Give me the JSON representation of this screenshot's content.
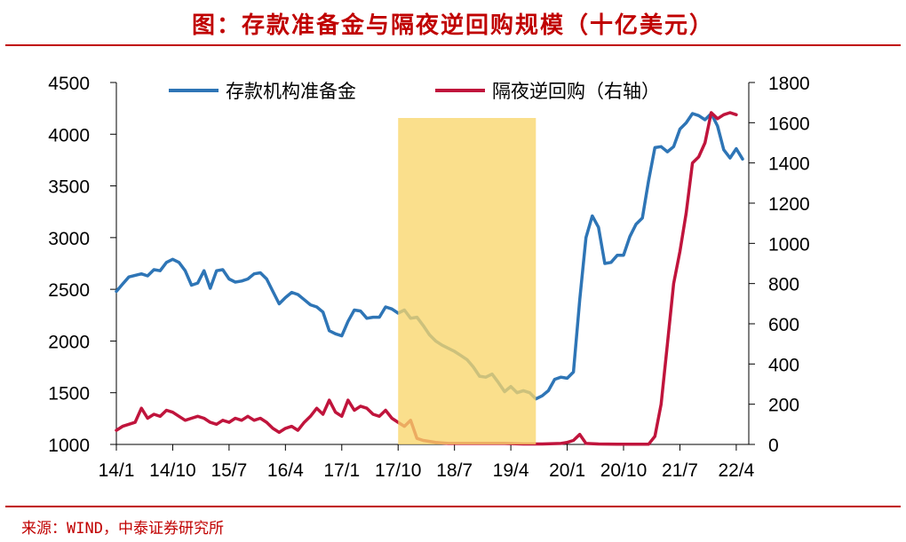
{
  "header": {
    "title": "图：存款准备金与隔夜逆回购规模（十亿美元）"
  },
  "footer": {
    "source": "来源：WIND，中泰证券研究所"
  },
  "chart_data": {
    "type": "line",
    "title": "图：存款准备金与隔夜逆回购规模（十亿美元）",
    "x_tick_labels": [
      "14/1",
      "14/10",
      "15/7",
      "16/4",
      "17/1",
      "17/10",
      "18/7",
      "19/4",
      "20/1",
      "20/10",
      "21/7",
      "22/4"
    ],
    "x_range": [
      "2014-01",
      "2022-06"
    ],
    "y_left": {
      "range": [
        1000,
        4500
      ],
      "ticks": [
        1000,
        1500,
        2000,
        2500,
        3000,
        3500,
        4000,
        4500
      ]
    },
    "y_right": {
      "range": [
        0,
        1800
      ],
      "ticks": [
        0,
        200,
        400,
        600,
        800,
        1000,
        1200,
        1400,
        1600,
        1800
      ]
    },
    "legend_position": "top",
    "highlight_band": {
      "start": "2017-10",
      "end": "2019-08",
      "color": "#f9d66b"
    },
    "series": [
      {
        "name": "存款机构准备金",
        "axis": "left",
        "color": "#2e75b6",
        "points": [
          [
            "2014-01",
            2480
          ],
          [
            "2014-02",
            2550
          ],
          [
            "2014-03",
            2620
          ],
          [
            "2014-05",
            2650
          ],
          [
            "2014-06",
            2630
          ],
          [
            "2014-07",
            2690
          ],
          [
            "2014-08",
            2680
          ],
          [
            "2014-09",
            2760
          ],
          [
            "2014-10",
            2790
          ],
          [
            "2014-11",
            2760
          ],
          [
            "2014-12",
            2680
          ],
          [
            "2015-01",
            2540
          ],
          [
            "2015-02",
            2560
          ],
          [
            "2015-03",
            2680
          ],
          [
            "2015-04",
            2510
          ],
          [
            "2015-05",
            2680
          ],
          [
            "2015-06",
            2690
          ],
          [
            "2015-07",
            2600
          ],
          [
            "2015-08",
            2570
          ],
          [
            "2015-09",
            2580
          ],
          [
            "2015-10",
            2600
          ],
          [
            "2015-11",
            2650
          ],
          [
            "2015-12",
            2660
          ],
          [
            "2016-01",
            2600
          ],
          [
            "2016-02",
            2480
          ],
          [
            "2016-03",
            2360
          ],
          [
            "2016-04",
            2420
          ],
          [
            "2016-05",
            2470
          ],
          [
            "2016-06",
            2450
          ],
          [
            "2016-07",
            2400
          ],
          [
            "2016-08",
            2350
          ],
          [
            "2016-09",
            2330
          ],
          [
            "2016-10",
            2280
          ],
          [
            "2016-11",
            2100
          ],
          [
            "2016-12",
            2070
          ],
          [
            "2017-01",
            2050
          ],
          [
            "2017-02",
            2190
          ],
          [
            "2017-03",
            2300
          ],
          [
            "2017-04",
            2290
          ],
          [
            "2017-05",
            2220
          ],
          [
            "2017-06",
            2230
          ],
          [
            "2017-07",
            2230
          ],
          [
            "2017-08",
            2330
          ],
          [
            "2017-09",
            2310
          ],
          [
            "2017-10",
            2270
          ],
          [
            "2017-11",
            2300
          ],
          [
            "2017-12",
            2220
          ],
          [
            "2018-01",
            2230
          ],
          [
            "2018-02",
            2150
          ],
          [
            "2018-03",
            2060
          ],
          [
            "2018-04",
            2000
          ],
          [
            "2018-05",
            1960
          ],
          [
            "2018-06",
            1930
          ],
          [
            "2018-07",
            1900
          ],
          [
            "2018-08",
            1860
          ],
          [
            "2018-09",
            1820
          ],
          [
            "2018-10",
            1750
          ],
          [
            "2018-11",
            1660
          ],
          [
            "2018-12",
            1650
          ],
          [
            "2019-01",
            1680
          ],
          [
            "2019-02",
            1600
          ],
          [
            "2019-03",
            1510
          ],
          [
            "2019-04",
            1560
          ],
          [
            "2019-05",
            1500
          ],
          [
            "2019-06",
            1520
          ],
          [
            "2019-07",
            1500
          ],
          [
            "2019-08",
            1440
          ],
          [
            "2019-09",
            1470
          ],
          [
            "2019-10",
            1520
          ],
          [
            "2019-11",
            1630
          ],
          [
            "2019-12",
            1650
          ],
          [
            "2020-01",
            1640
          ],
          [
            "2020-02",
            1700
          ],
          [
            "2020-03",
            2400
          ],
          [
            "2020-04",
            3000
          ],
          [
            "2020-05",
            3210
          ],
          [
            "2020-06",
            3100
          ],
          [
            "2020-07",
            2750
          ],
          [
            "2020-08",
            2760
          ],
          [
            "2020-09",
            2830
          ],
          [
            "2020-10",
            2830
          ],
          [
            "2020-11",
            3010
          ],
          [
            "2020-12",
            3130
          ],
          [
            "2021-01",
            3190
          ],
          [
            "2021-02",
            3550
          ],
          [
            "2021-03",
            3870
          ],
          [
            "2021-04",
            3880
          ],
          [
            "2021-05",
            3830
          ],
          [
            "2021-06",
            3880
          ],
          [
            "2021-07",
            4050
          ],
          [
            "2021-08",
            4110
          ],
          [
            "2021-09",
            4200
          ],
          [
            "2021-10",
            4180
          ],
          [
            "2021-11",
            4140
          ],
          [
            "2021-12",
            4200
          ],
          [
            "2022-01",
            4080
          ],
          [
            "2022-02",
            3850
          ],
          [
            "2022-03",
            3770
          ],
          [
            "2022-04",
            3860
          ],
          [
            "2022-05",
            3760
          ]
        ]
      },
      {
        "name": "隔夜逆回购（右轴）",
        "axis": "right",
        "color": "#c0143c",
        "points": [
          [
            "2014-01",
            70
          ],
          [
            "2014-02",
            90
          ],
          [
            "2014-03",
            100
          ],
          [
            "2014-04",
            110
          ],
          [
            "2014-05",
            180
          ],
          [
            "2014-06",
            130
          ],
          [
            "2014-07",
            150
          ],
          [
            "2014-08",
            140
          ],
          [
            "2014-09",
            170
          ],
          [
            "2014-10",
            160
          ],
          [
            "2014-11",
            140
          ],
          [
            "2014-12",
            120
          ],
          [
            "2015-01",
            130
          ],
          [
            "2015-02",
            140
          ],
          [
            "2015-03",
            130
          ],
          [
            "2015-04",
            110
          ],
          [
            "2015-05",
            100
          ],
          [
            "2015-06",
            120
          ],
          [
            "2015-07",
            110
          ],
          [
            "2015-08",
            130
          ],
          [
            "2015-09",
            120
          ],
          [
            "2015-10",
            140
          ],
          [
            "2015-11",
            120
          ],
          [
            "2015-12",
            130
          ],
          [
            "2016-01",
            110
          ],
          [
            "2016-02",
            80
          ],
          [
            "2016-03",
            60
          ],
          [
            "2016-04",
            80
          ],
          [
            "2016-05",
            90
          ],
          [
            "2016-06",
            70
          ],
          [
            "2016-07",
            110
          ],
          [
            "2016-08",
            140
          ],
          [
            "2016-09",
            180
          ],
          [
            "2016-10",
            150
          ],
          [
            "2016-11",
            220
          ],
          [
            "2016-12",
            160
          ],
          [
            "2017-01",
            140
          ],
          [
            "2017-02",
            220
          ],
          [
            "2017-03",
            170
          ],
          [
            "2017-04",
            190
          ],
          [
            "2017-05",
            180
          ],
          [
            "2017-06",
            150
          ],
          [
            "2017-07",
            140
          ],
          [
            "2017-08",
            170
          ],
          [
            "2017-09",
            130
          ],
          [
            "2017-10",
            110
          ],
          [
            "2017-11",
            90
          ],
          [
            "2017-12",
            120
          ],
          [
            "2018-01",
            30
          ],
          [
            "2018-02",
            20
          ],
          [
            "2018-03",
            15
          ],
          [
            "2018-04",
            10
          ],
          [
            "2018-06",
            5
          ],
          [
            "2018-09",
            5
          ],
          [
            "2018-12",
            5
          ],
          [
            "2019-03",
            5
          ],
          [
            "2019-06",
            2
          ],
          [
            "2019-09",
            2
          ],
          [
            "2019-12",
            5
          ],
          [
            "2020-01",
            10
          ],
          [
            "2020-02",
            20
          ],
          [
            "2020-03",
            50
          ],
          [
            "2020-04",
            5
          ],
          [
            "2020-06",
            2
          ],
          [
            "2020-09",
            1
          ],
          [
            "2020-12",
            1
          ],
          [
            "2021-02",
            1
          ],
          [
            "2021-03",
            40
          ],
          [
            "2021-04",
            200
          ],
          [
            "2021-05",
            500
          ],
          [
            "2021-06",
            800
          ],
          [
            "2021-07",
            960
          ],
          [
            "2021-08",
            1150
          ],
          [
            "2021-09",
            1400
          ],
          [
            "2021-10",
            1430
          ],
          [
            "2021-11",
            1500
          ],
          [
            "2021-12",
            1650
          ],
          [
            "2022-01",
            1620
          ],
          [
            "2022-02",
            1640
          ],
          [
            "2022-03",
            1650
          ],
          [
            "2022-04",
            1640
          ]
        ]
      }
    ]
  }
}
